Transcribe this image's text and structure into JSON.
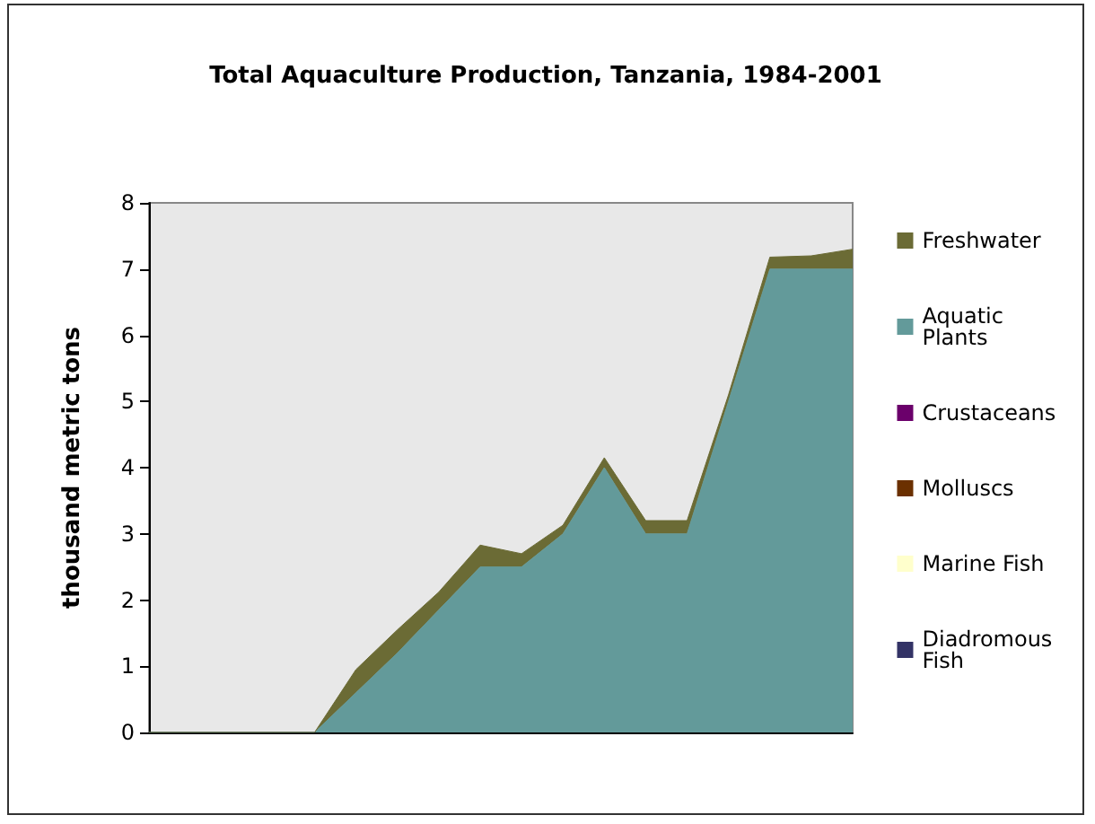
{
  "chart_data": {
    "type": "area",
    "title": "Total Aquaculture Production, Tanzania, 1984-2001",
    "ylabel": "thousand metric tons",
    "categories": [
      null,
      null,
      null,
      null,
      null,
      null,
      null,
      null,
      null,
      null,
      null,
      null,
      null,
      null,
      null,
      null,
      null,
      null
    ],
    "stacked": true,
    "ylim": [
      0,
      8
    ],
    "yticks": [
      0,
      1,
      2,
      3,
      4,
      5,
      6,
      7,
      8
    ],
    "grid": false,
    "legend": "right",
    "series": [
      {
        "name": "Diadromous Fish",
        "color": "#333366",
        "values": [
          null,
          null,
          null,
          null,
          null,
          null,
          null,
          null,
          null,
          null,
          null,
          null,
          null,
          null,
          null,
          null,
          null,
          null
        ]
      },
      {
        "name": "Marine Fish",
        "color": "#ffffcc",
        "values": [
          null,
          null,
          null,
          null,
          null,
          null,
          null,
          null,
          null,
          null,
          null,
          null,
          null,
          null,
          null,
          null,
          null,
          null
        ]
      },
      {
        "name": "Molluscs",
        "color": "#6b3000",
        "values": [
          null,
          null,
          null,
          null,
          null,
          null,
          null,
          null,
          null,
          null,
          null,
          null,
          null,
          null,
          null,
          null,
          null,
          null
        ]
      },
      {
        "name": "Crustaceans",
        "color": "#6b006b",
        "values": [
          null,
          null,
          null,
          null,
          null,
          null,
          null,
          null,
          null,
          null,
          null,
          null,
          null,
          null,
          null,
          null,
          null,
          null
        ]
      },
      {
        "name": "Aquatic Plants",
        "color": "#639a9a",
        "values": [
          0,
          0,
          0,
          0,
          0,
          0.6,
          1.2,
          1.85,
          2.5,
          2.5,
          3.0,
          4.0,
          3.0,
          3.0,
          5.0,
          7.0,
          7.0,
          7.0
        ]
      },
      {
        "name": "Freshwater",
        "color": "#6b6b35",
        "values": [
          0,
          0,
          0,
          0,
          0,
          0.35,
          0.35,
          0.27,
          0.33,
          0.2,
          0.13,
          0.15,
          0.2,
          0.2,
          0.1,
          0.18,
          0.2,
          0.3
        ]
      }
    ]
  }
}
